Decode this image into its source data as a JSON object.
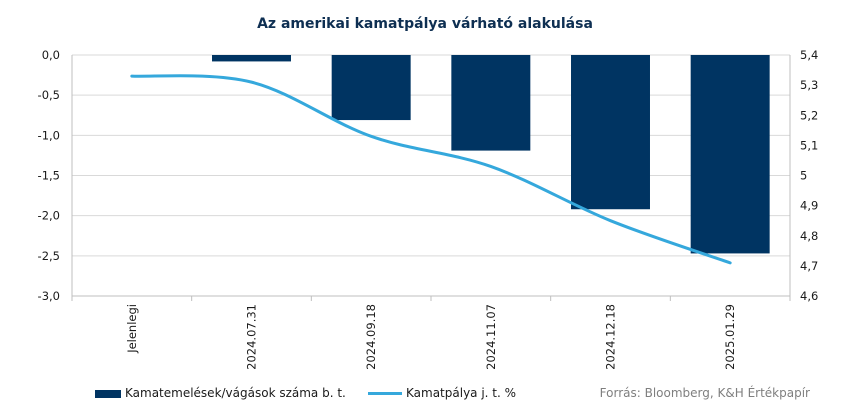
{
  "chart_data": {
    "type": "bar+line",
    "title": "Az amerikai kamatpálya várható alakulása",
    "categories": [
      "Jelenlegi",
      "2024.07.31",
      "2024.09.18",
      "2024.11.07",
      "2024.12.18",
      "2025.01.29"
    ],
    "series": [
      {
        "name": "Kamatemelések/vágások száma b. t.",
        "type": "bar",
        "axis": "left",
        "color": "#003462",
        "values": [
          0.0,
          -0.08,
          -0.81,
          -1.19,
          -1.92,
          -2.47
        ]
      },
      {
        "name": "Kamatpálya j. t. %",
        "type": "line",
        "axis": "right",
        "color": "#35a8dc",
        "values": [
          5.33,
          5.31,
          5.13,
          5.03,
          4.85,
          4.71
        ]
      }
    ],
    "left_axis": {
      "ylim": [
        -3.0,
        0.0
      ],
      "ticks": [
        "0,0",
        "-0,5",
        "-1,0",
        "-1,5",
        "-2,0",
        "-2,5",
        "-3,0"
      ],
      "tick_values": [
        0.0,
        -0.5,
        -1.0,
        -1.5,
        -2.0,
        -2.5,
        -3.0
      ]
    },
    "right_axis": {
      "ylim": [
        4.6,
        5.4
      ],
      "ticks": [
        "5,4",
        "5,3",
        "5,2",
        "5,1",
        "5",
        "4,9",
        "4,8",
        "4,7",
        "4,6"
      ],
      "tick_values": [
        5.4,
        5.3,
        5.2,
        5.1,
        5.0,
        4.9,
        4.8,
        4.7,
        4.6
      ]
    },
    "grid": true,
    "legend_position": "bottom-left",
    "source": "Forrás: Bloomberg, K&H Értékpapír"
  }
}
